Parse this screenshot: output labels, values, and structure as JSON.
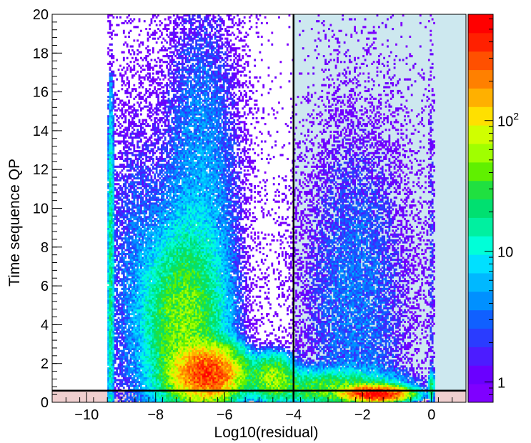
{
  "chart_data": {
    "type": "heatmap",
    "xlabel": "Log10(residual)",
    "ylabel": "Time sequence QP",
    "xlim": [
      -11,
      1
    ],
    "ylim": [
      0,
      20
    ],
    "x_ticks": [
      {
        "value": -10,
        "label": "−10"
      },
      {
        "value": -8,
        "label": "−8"
      },
      {
        "value": -6,
        "label": "−6"
      },
      {
        "value": -4,
        "label": "−4"
      },
      {
        "value": -2,
        "label": "−2"
      },
      {
        "value": 0,
        "label": "0"
      }
    ],
    "y_ticks": [
      {
        "value": 0,
        "label": "0"
      },
      {
        "value": 2,
        "label": "2"
      },
      {
        "value": 4,
        "label": "4"
      },
      {
        "value": 6,
        "label": "6"
      },
      {
        "value": 8,
        "label": "8"
      },
      {
        "value": 10,
        "label": "10"
      },
      {
        "value": 12,
        "label": "12"
      },
      {
        "value": 14,
        "label": "14"
      },
      {
        "value": 16,
        "label": "16"
      },
      {
        "value": 18,
        "label": "18"
      },
      {
        "value": 20,
        "label": "20"
      }
    ],
    "color_scale": {
      "type": "log",
      "range": [
        0.7,
        650
      ],
      "ticks": [
        {
          "value": 1,
          "label": "1"
        },
        {
          "value": 10,
          "label": "10"
        },
        {
          "value": 100,
          "label": "10^2"
        }
      ],
      "palette": [
        "#7f00ff",
        "#6a00ff",
        "#4c1cff",
        "#2a3cff",
        "#1060ff",
        "#0090ff",
        "#00b8ff",
        "#00e0ff",
        "#00ffd8",
        "#00f0a0",
        "#00e070",
        "#20e040",
        "#60f000",
        "#a0ff00",
        "#d0ff00",
        "#ffe000",
        "#ffb000",
        "#ff8000",
        "#ff5000",
        "#ff2000",
        "#ff0000"
      ]
    },
    "cut_lines": {
      "x": -4,
      "y": 0.6
    },
    "regions": [
      {
        "name": "x > -4, y > 0.6",
        "color": "#cde8ef"
      },
      {
        "name": "y < 0.6",
        "color": "#f0cfcf"
      }
    ],
    "clusters": [
      {
        "x": -6.5,
        "y": 1.5,
        "peak": 400
      },
      {
        "x": -1.6,
        "y": 0.4,
        "peak": 600
      }
    ]
  }
}
